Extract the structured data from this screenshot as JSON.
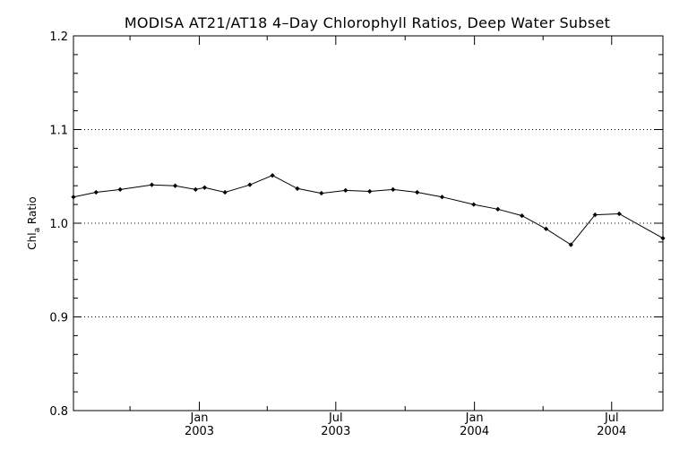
{
  "chart_data": {
    "type": "line",
    "title": "MODISA AT21/AT18 4–Day Chlorophyll Ratios, Deep Water Subset",
    "ylabel": {
      "main": "Chl",
      "sub": "a",
      "rest": " Ratio"
    },
    "xlabel": "",
    "ylim": [
      0.8,
      1.2
    ],
    "yticks": [
      {
        "value": 0.8,
        "label": "0.8"
      },
      {
        "value": 0.9,
        "label": "0.9"
      },
      {
        "value": 1.0,
        "label": "1.0"
      },
      {
        "value": 1.1,
        "label": "1.1"
      },
      {
        "value": 1.2,
        "label": "1.2"
      }
    ],
    "xlim": [
      "2002-07-18",
      "2004-09-07"
    ],
    "xticks": [
      {
        "date": "2003-01-01",
        "line1": "Jan",
        "line2": "2003"
      },
      {
        "date": "2003-07-01",
        "line1": "Jul",
        "line2": "2003"
      },
      {
        "date": "2004-01-01",
        "line1": "Jan",
        "line2": "2004"
      },
      {
        "date": "2004-07-01",
        "line1": "Jul",
        "line2": "2004"
      }
    ],
    "minor_xticks": [
      "2002-10-01",
      "2003-04-01",
      "2003-10-01",
      "2004-04-01"
    ],
    "grid_y": [
      0.9,
      1.0,
      1.1
    ],
    "series": [
      {
        "points": [
          {
            "x": "2002-07-18",
            "y": 1.028
          },
          {
            "x": "2002-08-17",
            "y": 1.033
          },
          {
            "x": "2002-09-18",
            "y": 1.036
          },
          {
            "x": "2002-10-30",
            "y": 1.041
          },
          {
            "x": "2002-11-30",
            "y": 1.04
          },
          {
            "x": "2002-12-27",
            "y": 1.036
          },
          {
            "x": "2003-01-08",
            "y": 1.038
          },
          {
            "x": "2003-02-04",
            "y": 1.033
          },
          {
            "x": "2003-03-09",
            "y": 1.041
          },
          {
            "x": "2003-04-08",
            "y": 1.051
          },
          {
            "x": "2003-05-11",
            "y": 1.037
          },
          {
            "x": "2003-06-12",
            "y": 1.032
          },
          {
            "x": "2003-07-14",
            "y": 1.035
          },
          {
            "x": "2003-08-15",
            "y": 1.034
          },
          {
            "x": "2003-09-15",
            "y": 1.036
          },
          {
            "x": "2003-10-17",
            "y": 1.033
          },
          {
            "x": "2003-11-19",
            "y": 1.028
          },
          {
            "x": "2003-12-31",
            "y": 1.02
          },
          {
            "x": "2004-02-01",
            "y": 1.015
          },
          {
            "x": "2004-03-04",
            "y": 1.008
          },
          {
            "x": "2004-04-05",
            "y": 0.994
          },
          {
            "x": "2004-05-08",
            "y": 0.977
          },
          {
            "x": "2004-06-09",
            "y": 1.009
          },
          {
            "x": "2004-07-11",
            "y": 1.01
          },
          {
            "x": "2004-09-07",
            "y": 0.984
          }
        ]
      }
    ]
  }
}
